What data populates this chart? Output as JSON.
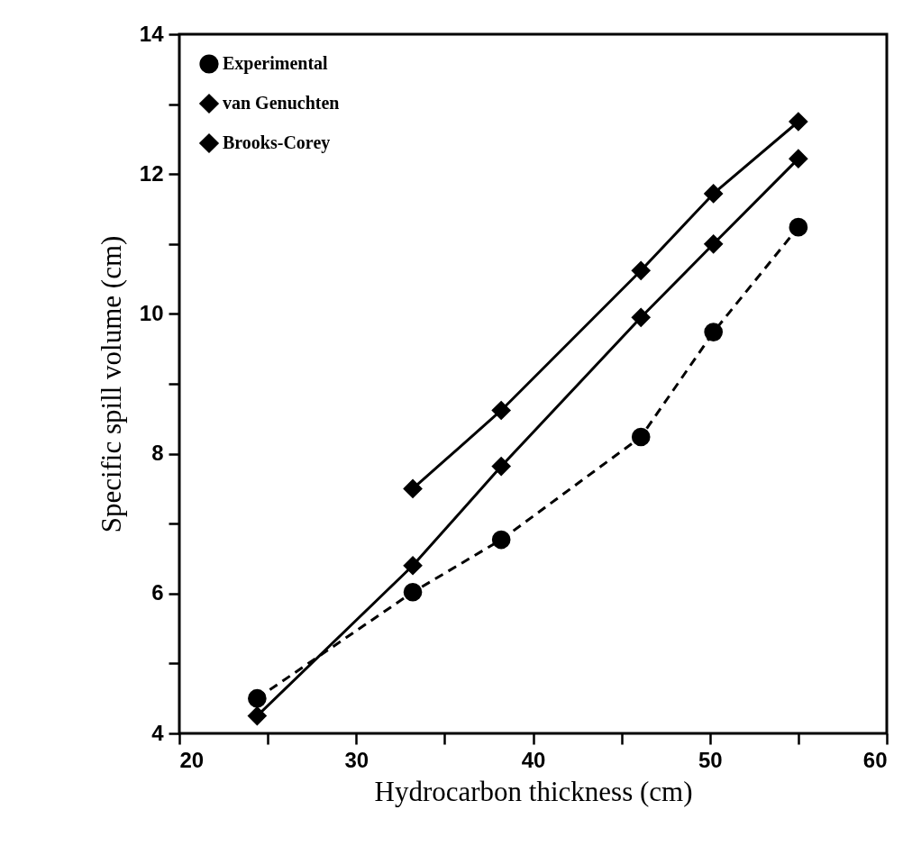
{
  "chart_data": {
    "type": "line",
    "xlabel": "Hydrocarbon thickness (cm)",
    "ylabel": "Specific spill volume (cm)",
    "xlim": [
      20,
      60
    ],
    "ylim": [
      4,
      14
    ],
    "xticks": [
      20,
      {
        "value": 25,
        "label": null
      },
      30,
      {
        "value": 35,
        "label": null
      },
      40,
      {
        "value": 45,
        "label": null
      },
      50,
      {
        "value": 55,
        "label": null
      },
      60
    ],
    "yticks": [
      4,
      {
        "value": 5,
        "label": null
      },
      6,
      {
        "value": 7,
        "label": null
      },
      8,
      {
        "value": 9,
        "label": null
      },
      10,
      {
        "value": 11,
        "label": null
      },
      12,
      {
        "value": 13,
        "label": null
      },
      14
    ],
    "grid": false,
    "legend": "top left",
    "series": [
      {
        "name": "Experimental",
        "color": "#000000",
        "marker": "circle",
        "line_style": "dashed",
        "x": [
          24.4,
          33.2,
          38.2,
          46.1,
          50.2,
          55.0
        ],
        "values": [
          4.5,
          6.02,
          6.77,
          8.24,
          9.74,
          11.24
        ]
      },
      {
        "name": "van Genuchten",
        "color": "#000000",
        "marker": "diamond",
        "line_style": "solid",
        "x": [
          24.4,
          33.2,
          38.2,
          46.1,
          50.2,
          55.0
        ],
        "values": [
          4.25,
          6.4,
          7.82,
          9.95,
          11.0,
          12.22
        ]
      },
      {
        "name": "Brooks-Corey",
        "color": "#000000",
        "marker": "diamond",
        "line_style": "solid",
        "x": [
          33.2,
          38.2,
          46.1,
          50.2,
          55.0
        ],
        "values": [
          7.5,
          8.62,
          10.62,
          11.72,
          12.75
        ]
      }
    ]
  }
}
